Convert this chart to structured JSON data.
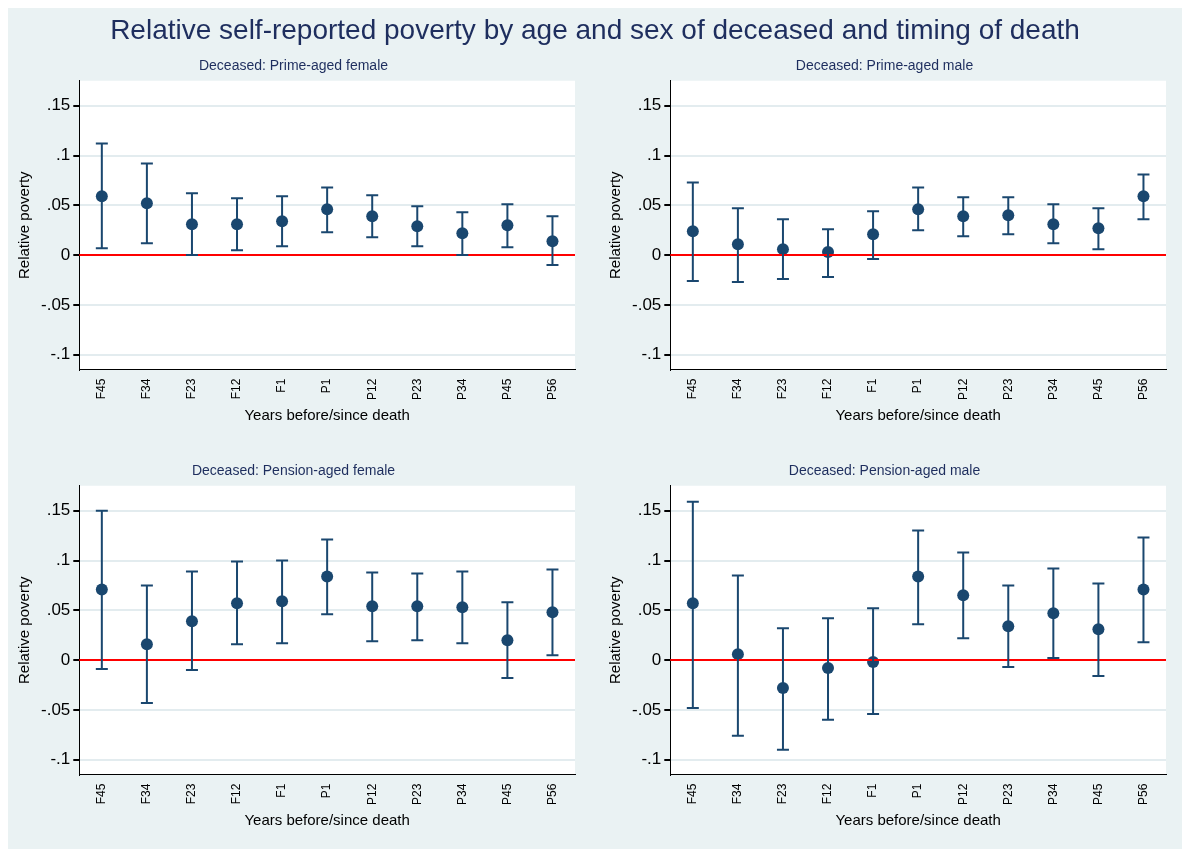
{
  "chart_data": [
    {
      "type": "scatter",
      "title": "Deceased: Prime-aged female",
      "xlabel": "Years before/since death",
      "ylabel": "Relative poverty",
      "annotations": [
        "Relative self-reported poverty by age and sex of deceased and timing of death"
      ],
      "categories": [
        "F45",
        "F34",
        "F23",
        "F12",
        "F1",
        "P1",
        "P12",
        "P23",
        "P34",
        "P45",
        "P56"
      ],
      "color": "#1a476f",
      "marker": "circle",
      "grid": "y",
      "legend": false,
      "ylim": [
        -0.115,
        0.175
      ],
      "yticks": [
        {
          "value": -0.1,
          "label": "-.1"
        },
        {
          "value": -0.05,
          "label": "-.05"
        },
        {
          "value": 0,
          "label": "0"
        },
        {
          "value": 0.05,
          "label": ".05"
        },
        {
          "value": 0.1,
          "label": ".1"
        },
        {
          "value": 0.15,
          "label": ".15"
        }
      ],
      "ref_lines": [
        {
          "axis": "y",
          "value": 0,
          "color": "#ff0000"
        }
      ],
      "values": [
        0.059,
        0.052,
        0.031,
        0.031,
        0.034,
        0.046,
        0.039,
        0.029,
        0.022,
        0.03,
        0.014
      ],
      "errors": [
        [
          0.007,
          0.112
        ],
        [
          0.012,
          0.092
        ],
        [
          0,
          0.062
        ],
        [
          0.005,
          0.057
        ],
        [
          0.009,
          0.059
        ],
        [
          0.023,
          0.068
        ],
        [
          0.018,
          0.06
        ],
        [
          0.009,
          0.049
        ],
        [
          0,
          0.043
        ],
        [
          0.008,
          0.051
        ],
        [
          -0.01,
          0.039
        ]
      ]
    },
    {
      "type": "scatter",
      "title": "Deceased: Prime-aged male",
      "xlabel": "Years before/since death",
      "ylabel": "Relative poverty",
      "categories": [
        "F45",
        "F34",
        "F23",
        "F12",
        "F1",
        "P1",
        "P12",
        "P23",
        "P34",
        "P45",
        "P56"
      ],
      "color": "#1a476f",
      "marker": "circle",
      "grid": "y",
      "legend": false,
      "ylim": [
        -0.115,
        0.175
      ],
      "yticks": [
        {
          "value": -0.1,
          "label": "-.1"
        },
        {
          "value": -0.05,
          "label": "-.05"
        },
        {
          "value": 0,
          "label": "0"
        },
        {
          "value": 0.05,
          "label": ".05"
        },
        {
          "value": 0.1,
          "label": ".1"
        },
        {
          "value": 0.15,
          "label": ".15"
        }
      ],
      "ref_lines": [
        {
          "axis": "y",
          "value": 0,
          "color": "#ff0000"
        }
      ],
      "values": [
        0.024,
        0.011,
        0.006,
        0.003,
        0.021,
        0.046,
        0.039,
        0.04,
        0.031,
        0.027,
        0.059
      ],
      "errors": [
        [
          -0.026,
          0.073
        ],
        [
          -0.027,
          0.047
        ],
        [
          -0.024,
          0.036
        ],
        [
          -0.022,
          0.026
        ],
        [
          -0.004,
          0.044
        ],
        [
          0.025,
          0.068
        ],
        [
          0.019,
          0.058
        ],
        [
          0.021,
          0.058
        ],
        [
          0.012,
          0.051
        ],
        [
          0.006,
          0.047
        ],
        [
          0.036,
          0.081
        ]
      ]
    },
    {
      "type": "scatter",
      "title": "Deceased: Pension-aged female",
      "xlabel": "Years before/since death",
      "ylabel": "Relative poverty",
      "categories": [
        "F45",
        "F34",
        "F23",
        "F12",
        "F1",
        "P1",
        "P12",
        "P23",
        "P34",
        "P45",
        "P56"
      ],
      "color": "#1a476f",
      "marker": "circle",
      "grid": "y",
      "legend": false,
      "ylim": [
        -0.115,
        0.175
      ],
      "yticks": [
        {
          "value": -0.1,
          "label": "-.1"
        },
        {
          "value": -0.05,
          "label": "-.05"
        },
        {
          "value": 0,
          "label": "0"
        },
        {
          "value": 0.05,
          "label": ".05"
        },
        {
          "value": 0.1,
          "label": ".1"
        },
        {
          "value": 0.15,
          "label": ".15"
        }
      ],
      "ref_lines": [
        {
          "axis": "y",
          "value": 0,
          "color": "#ff0000"
        }
      ],
      "values": [
        0.071,
        0.016,
        0.039,
        0.057,
        0.059,
        0.084,
        0.054,
        0.054,
        0.053,
        0.02,
        0.048
      ],
      "errors": [
        [
          -0.009,
          0.15
        ],
        [
          -0.043,
          0.075
        ],
        [
          -0.01,
          0.089
        ],
        [
          0.016,
          0.099
        ],
        [
          0.017,
          0.1
        ],
        [
          0.046,
          0.121
        ],
        [
          0.019,
          0.088
        ],
        [
          0.02,
          0.087
        ],
        [
          0.017,
          0.089
        ],
        [
          -0.018,
          0.058
        ],
        [
          0.005,
          0.091
        ]
      ]
    },
    {
      "type": "scatter",
      "title": "Deceased: Pension-aged male",
      "xlabel": "Years before/since death",
      "ylabel": "Relative poverty",
      "categories": [
        "F45",
        "F34",
        "F23",
        "F12",
        "F1",
        "P1",
        "P12",
        "P23",
        "P34",
        "P45",
        "P56"
      ],
      "color": "#1a476f",
      "marker": "circle",
      "grid": "y",
      "legend": false,
      "ylim": [
        -0.115,
        0.175
      ],
      "yticks": [
        {
          "value": -0.1,
          "label": "-.1"
        },
        {
          "value": -0.05,
          "label": "-.05"
        },
        {
          "value": 0,
          "label": "0"
        },
        {
          "value": 0.05,
          "label": ".05"
        },
        {
          "value": 0.1,
          "label": ".1"
        },
        {
          "value": 0.15,
          "label": ".15"
        }
      ],
      "ref_lines": [
        {
          "axis": "y",
          "value": 0,
          "color": "#ff0000"
        }
      ],
      "values": [
        0.057,
        0.006,
        -0.028,
        -0.008,
        -0.002,
        0.084,
        0.065,
        0.034,
        0.047,
        0.031,
        0.071
      ],
      "errors": [
        [
          -0.048,
          0.159
        ],
        [
          -0.076,
          0.085
        ],
        [
          -0.09,
          0.032
        ],
        [
          -0.06,
          0.042
        ],
        [
          -0.054,
          0.052
        ],
        [
          0.036,
          0.13
        ],
        [
          0.022,
          0.108
        ],
        [
          -0.007,
          0.075
        ],
        [
          0.002,
          0.092
        ],
        [
          -0.016,
          0.077
        ],
        [
          0.018,
          0.123
        ]
      ]
    }
  ]
}
